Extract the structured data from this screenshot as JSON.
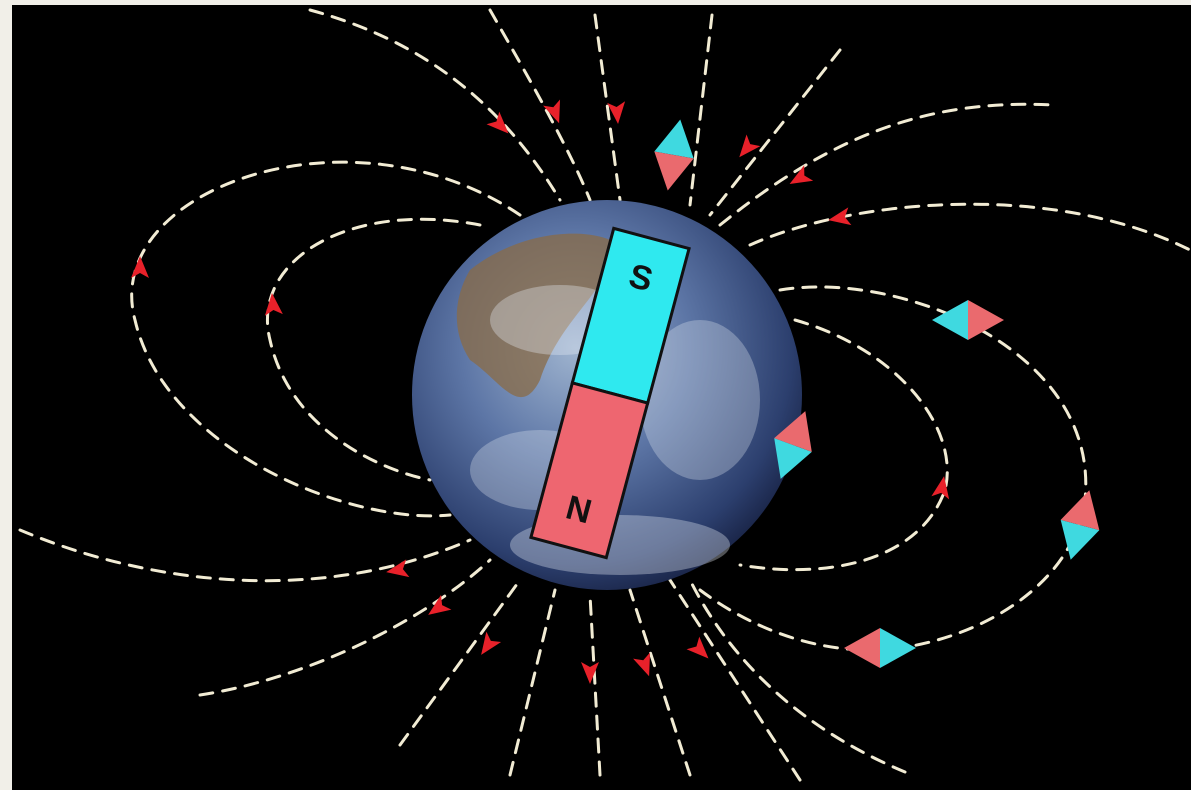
{
  "magnet": {
    "south_label": "S",
    "north_label": "N"
  }
}
